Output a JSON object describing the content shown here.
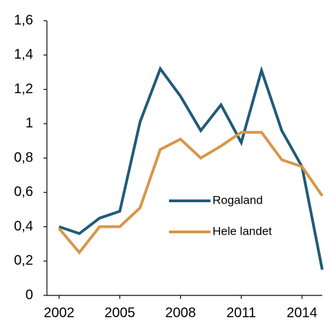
{
  "chart_data": {
    "type": "line",
    "x": [
      2002,
      2003,
      2004,
      2005,
      2006,
      2007,
      2008,
      2009,
      2010,
      2011,
      2012,
      2013,
      2014,
      2015
    ],
    "series": [
      {
        "name": "Rogaland",
        "color": "#1f5b78",
        "values": [
          0.4,
          0.36,
          0.45,
          0.49,
          1.01,
          1.32,
          1.16,
          0.96,
          1.11,
          0.89,
          1.31,
          0.96,
          0.75,
          0.15
        ]
      },
      {
        "name": "Hele landet",
        "color": "#d99549",
        "values": [
          0.39,
          0.25,
          0.4,
          0.4,
          0.51,
          0.85,
          0.91,
          0.8,
          0.87,
          0.95,
          0.95,
          0.79,
          0.75,
          0.58
        ]
      }
    ],
    "xlim": [
      2001.4,
      2015
    ],
    "xticks": [
      2002,
      2005,
      2008,
      2011,
      2014
    ],
    "ylim": [
      0,
      1.6
    ],
    "yticks": [
      0,
      {
        "value": 0.2,
        "label": "0,2"
      },
      {
        "value": 0.4,
        "label": "0,4"
      },
      {
        "value": 0.6,
        "label": "0,6"
      },
      {
        "value": 0.8,
        "label": "0,8"
      },
      1,
      {
        "value": 1.2,
        "label": "1,2"
      },
      {
        "value": 1.4,
        "label": "1,4"
      },
      {
        "value": 1.6,
        "label": "1,6"
      }
    ],
    "grid": false,
    "legend": "center-right"
  }
}
